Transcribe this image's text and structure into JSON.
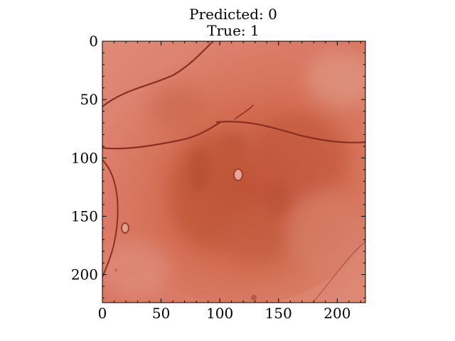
{
  "figure": {
    "title_line1": "Predicted: 0",
    "title_line2": "True: 1"
  },
  "image": {
    "description": "dermoscopy skin lesion image",
    "x_ticks": [
      "0",
      "50",
      "100",
      "150",
      "200"
    ],
    "y_ticks": [
      "0",
      "50",
      "100",
      "150",
      "200"
    ],
    "x_range": [
      0,
      224
    ],
    "y_range": [
      0,
      224
    ],
    "base_color": "#d8755f",
    "lesion_color": "#c75a3f",
    "hair_color": "#8a2f22"
  }
}
